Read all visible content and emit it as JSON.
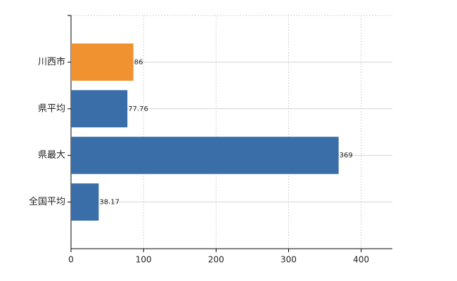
{
  "chart_data": {
    "type": "bar",
    "orientation": "horizontal",
    "categories": [
      "川西市",
      "県平均",
      "県最大",
      "全国平均"
    ],
    "values": [
      86,
      77.76,
      369,
      38.17
    ],
    "colors": [
      "#f0922f",
      "#3a6ea8",
      "#3a6ea8",
      "#3a6ea8"
    ],
    "xlim": [
      0,
      443
    ],
    "xticks": [
      0,
      100,
      200,
      300,
      400
    ],
    "grid": true
  }
}
